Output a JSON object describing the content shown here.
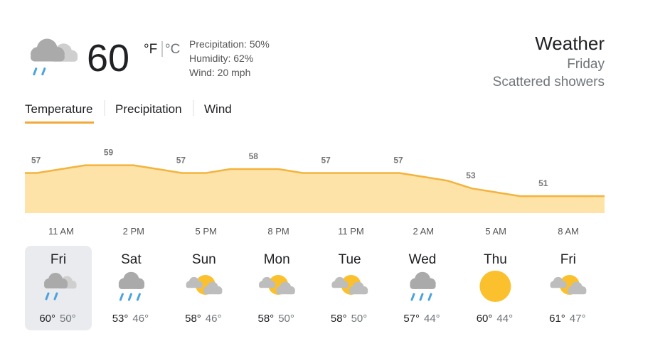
{
  "current": {
    "temperature": 60,
    "unit_f": "°F",
    "unit_c": "°C",
    "precipitation": "Precipitation: 50%",
    "humidity": "Humidity: 62%",
    "wind": "Wind: 20 mph"
  },
  "header": {
    "title": "Weather",
    "day": "Friday",
    "condition": "Scattered showers"
  },
  "tabs": [
    "Temperature",
    "Precipitation",
    "Wind"
  ],
  "chart_data": {
    "type": "area",
    "categories": [
      "11 AM",
      null,
      null,
      "2 PM",
      null,
      null,
      "5 PM",
      null,
      null,
      "8 PM",
      null,
      null,
      "11 PM",
      null,
      null,
      "2 AM",
      null,
      null,
      "5 AM",
      null,
      null,
      "8 AM",
      null,
      null
    ],
    "values": [
      57,
      58,
      59,
      59,
      59,
      58,
      57,
      57,
      58,
      58,
      58,
      57,
      57,
      57,
      57,
      57,
      56,
      55,
      53,
      52,
      51,
      51,
      51,
      51
    ],
    "color": "#f3b33d",
    "fill": "#fde3a8",
    "ylim": [
      46.6,
      65
    ]
  },
  "forecast": [
    {
      "day": "Fri",
      "high": "60°",
      "low": "50°"
    },
    {
      "day": "Sat",
      "high": "53°",
      "low": "46°"
    },
    {
      "day": "Sun",
      "high": "58°",
      "low": "46°"
    },
    {
      "day": "Mon",
      "high": "58°",
      "low": "50°"
    },
    {
      "day": "Tue",
      "high": "58°",
      "low": "50°"
    },
    {
      "day": "Wed",
      "high": "57°",
      "low": "44°"
    },
    {
      "day": "Thu",
      "high": "60°",
      "low": "44°"
    },
    {
      "day": "Fri",
      "high": "61°",
      "low": "47°"
    }
  ]
}
